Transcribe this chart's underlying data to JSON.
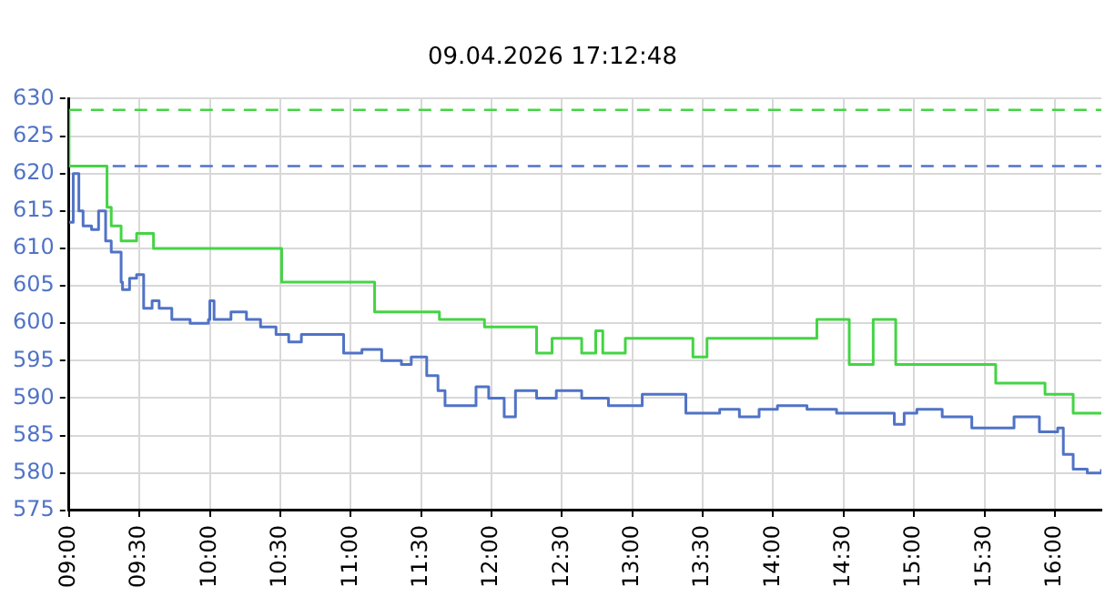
{
  "chart_data": {
    "type": "step",
    "title": "09.04.2026 17:12:48",
    "xlim": [
      9,
      16.33
    ],
    "xticks": [
      {
        "value": 9,
        "label": "09:00"
      },
      {
        "value": 9.5,
        "label": "09:30"
      },
      {
        "value": 10,
        "label": "10:00"
      },
      {
        "value": 10.5,
        "label": "10:30"
      },
      {
        "value": 11,
        "label": "11:00"
      },
      {
        "value": 11.5,
        "label": "11:30"
      },
      {
        "value": 12,
        "label": "12:00"
      },
      {
        "value": 12.5,
        "label": "12:30"
      },
      {
        "value": 13,
        "label": "13:00"
      },
      {
        "value": 13.5,
        "label": "13:30"
      },
      {
        "value": 14,
        "label": "14:00"
      },
      {
        "value": 14.5,
        "label": "14:30"
      },
      {
        "value": 15,
        "label": "15:00"
      },
      {
        "value": 15.5,
        "label": "15:30"
      },
      {
        "value": 16,
        "label": "16:00"
      }
    ],
    "ylim": [
      575,
      630
    ],
    "yticks": [
      575,
      580,
      585,
      590,
      595,
      600,
      605,
      610,
      615,
      620,
      625,
      630
    ],
    "grid": true,
    "legend": false,
    "line_style": "solid",
    "marker": "none",
    "series": [
      {
        "color": "#5073c6",
        "x": [
          9.0,
          9.03,
          9.07,
          9.1,
          9.16,
          9.21,
          9.26,
          9.3,
          9.37,
          9.38,
          9.43,
          9.48,
          9.53,
          9.59,
          9.64,
          9.73,
          9.86,
          9.99,
          10.0,
          10.03,
          10.15,
          10.26,
          10.36,
          10.47,
          10.56,
          10.65,
          10.81,
          10.95,
          11.08,
          11.22,
          11.36,
          11.43,
          11.54,
          11.62,
          11.67,
          11.81,
          11.89,
          11.98,
          12.09,
          12.17,
          12.32,
          12.46,
          12.64,
          12.83,
          13.07,
          13.28,
          13.38,
          13.62,
          13.76,
          13.9,
          14.03,
          14.24,
          14.45,
          14.72,
          14.86,
          14.93,
          15.02,
          15.2,
          15.41,
          15.61,
          15.71,
          15.89,
          16.02,
          16.06,
          16.13,
          16.23,
          16.33
        ],
        "values": [
          613.5,
          620,
          615,
          613,
          612.5,
          615,
          611,
          609.5,
          605.5,
          604.5,
          606,
          606.5,
          602,
          603,
          602,
          600.5,
          600,
          600.5,
          603,
          600.5,
          601.5,
          600.5,
          599.5,
          598.5,
          597.5,
          598.5,
          598.5,
          596,
          596.5,
          595,
          594.5,
          595.5,
          593,
          591,
          589,
          589,
          591.5,
          590,
          587.5,
          591,
          590,
          591,
          590,
          589,
          590.5,
          590.5,
          588,
          588.5,
          587.5,
          588.5,
          589,
          588.5,
          588,
          588,
          586.5,
          588,
          588.5,
          587.5,
          586,
          586,
          587.5,
          585.5,
          586,
          582.5,
          580.5,
          580,
          580.5
        ]
      },
      {
        "color": "#44d444",
        "x": [
          9.0,
          9.0,
          9.27,
          9.3,
          9.37,
          9.48,
          9.6,
          10.51,
          11.17,
          11.63,
          11.95,
          12.32,
          12.43,
          12.64,
          12.74,
          12.79,
          12.95,
          13.43,
          13.53,
          14.31,
          14.54,
          14.71,
          14.87,
          15.58,
          15.93,
          16.13,
          16.33
        ],
        "values": [
          628.5,
          621,
          615.5,
          613,
          611,
          612,
          610,
          605.5,
          601.5,
          600.5,
          599.5,
          596,
          598,
          596,
          599,
          596,
          598,
          595.5,
          598,
          600.5,
          594.5,
          600.5,
          594.5,
          592,
          590.5,
          588,
          588
        ]
      }
    ],
    "ref_lines": [
      {
        "axis": "y",
        "value": 628.5,
        "color": "#44d444",
        "line_style": "dashed"
      },
      {
        "axis": "y",
        "value": 621,
        "color": "#5073c6",
        "line_style": "dashed"
      }
    ]
  }
}
